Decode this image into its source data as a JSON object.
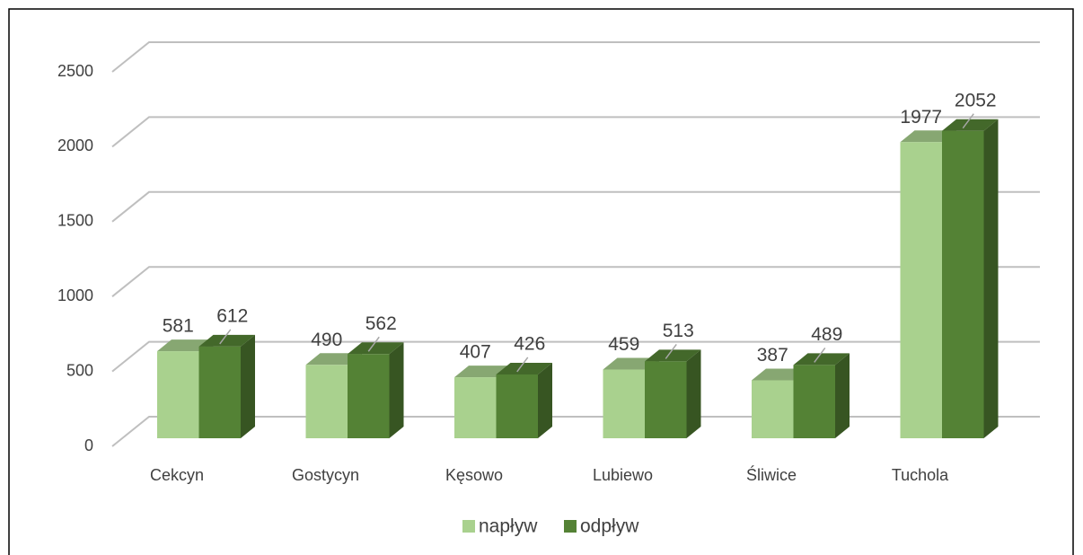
{
  "chart_data": {
    "type": "bar3d",
    "categories": [
      "Cekcyn",
      "Gostycyn",
      "Kęsowo",
      "Lubiewo",
      "Śliwice",
      "Tuchola"
    ],
    "series": [
      {
        "name": "napływ",
        "color": "#a9d18e",
        "values": [
          581,
          490,
          407,
          459,
          387,
          1977
        ]
      },
      {
        "name": "odpływ",
        "color": "#548235",
        "values": [
          612,
          562,
          426,
          513,
          489,
          2052
        ]
      }
    ],
    "ylim": [
      0,
      2500
    ],
    "yticks": [
      0,
      500,
      1000,
      1500,
      2000,
      2500
    ],
    "grid": true,
    "legend": "bottom"
  }
}
